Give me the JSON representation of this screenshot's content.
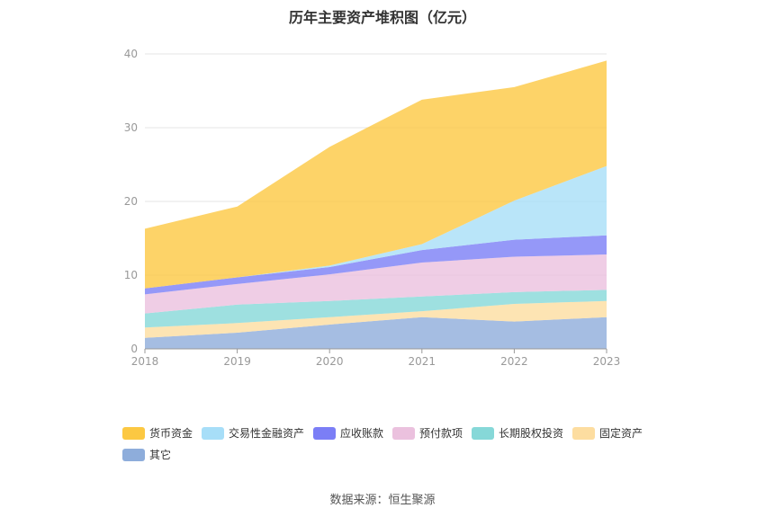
{
  "title": "历年主要资产堆积图（亿元）",
  "source": "数据来源：恒生聚源",
  "chart_data": {
    "type": "area",
    "stacked": true,
    "x": [
      "2018",
      "2019",
      "2020",
      "2021",
      "2022",
      "2023"
    ],
    "ylim": [
      0,
      40
    ],
    "yticks": [
      0,
      10,
      20,
      30,
      40
    ],
    "grid": true,
    "legend_position": "bottom",
    "series": [
      {
        "name": "其它",
        "color": "#8eaddb",
        "values": [
          1.5,
          2.2,
          3.3,
          4.3,
          3.7,
          4.3
        ]
      },
      {
        "name": "固定资产",
        "color": "#fddda0",
        "values": [
          1.4,
          1.3,
          1.0,
          0.8,
          2.4,
          2.2
        ]
      },
      {
        "name": "长期股权投资",
        "color": "#86d8d8",
        "values": [
          1.9,
          2.5,
          2.2,
          2.0,
          1.6,
          1.5
        ]
      },
      {
        "name": "预付款项",
        "color": "#ebc1de",
        "values": [
          2.6,
          2.8,
          3.6,
          4.6,
          4.8,
          4.8
        ]
      },
      {
        "name": "应收账款",
        "color": "#7b7ef6",
        "values": [
          0.8,
          0.9,
          1.0,
          1.7,
          2.3,
          2.6
        ]
      },
      {
        "name": "交易性金融资产",
        "color": "#a7def8",
        "values": [
          0.0,
          0.0,
          0.2,
          0.8,
          5.3,
          9.4
        ]
      },
      {
        "name": "货币资金",
        "color": "#fcc842",
        "values": [
          8.1,
          9.6,
          16.1,
          19.6,
          15.4,
          14.3
        ]
      }
    ]
  },
  "legend": [
    {
      "label": "货币资金",
      "color": "#fcc842"
    },
    {
      "label": "交易性金融资产",
      "color": "#a7def8"
    },
    {
      "label": "应收账款",
      "color": "#7b7ef6"
    },
    {
      "label": "预付款项",
      "color": "#ebc1de"
    },
    {
      "label": "长期股权投资",
      "color": "#86d8d8"
    },
    {
      "label": "固定资产",
      "color": "#fddda0"
    },
    {
      "label": "其它",
      "color": "#8eaddb"
    }
  ]
}
